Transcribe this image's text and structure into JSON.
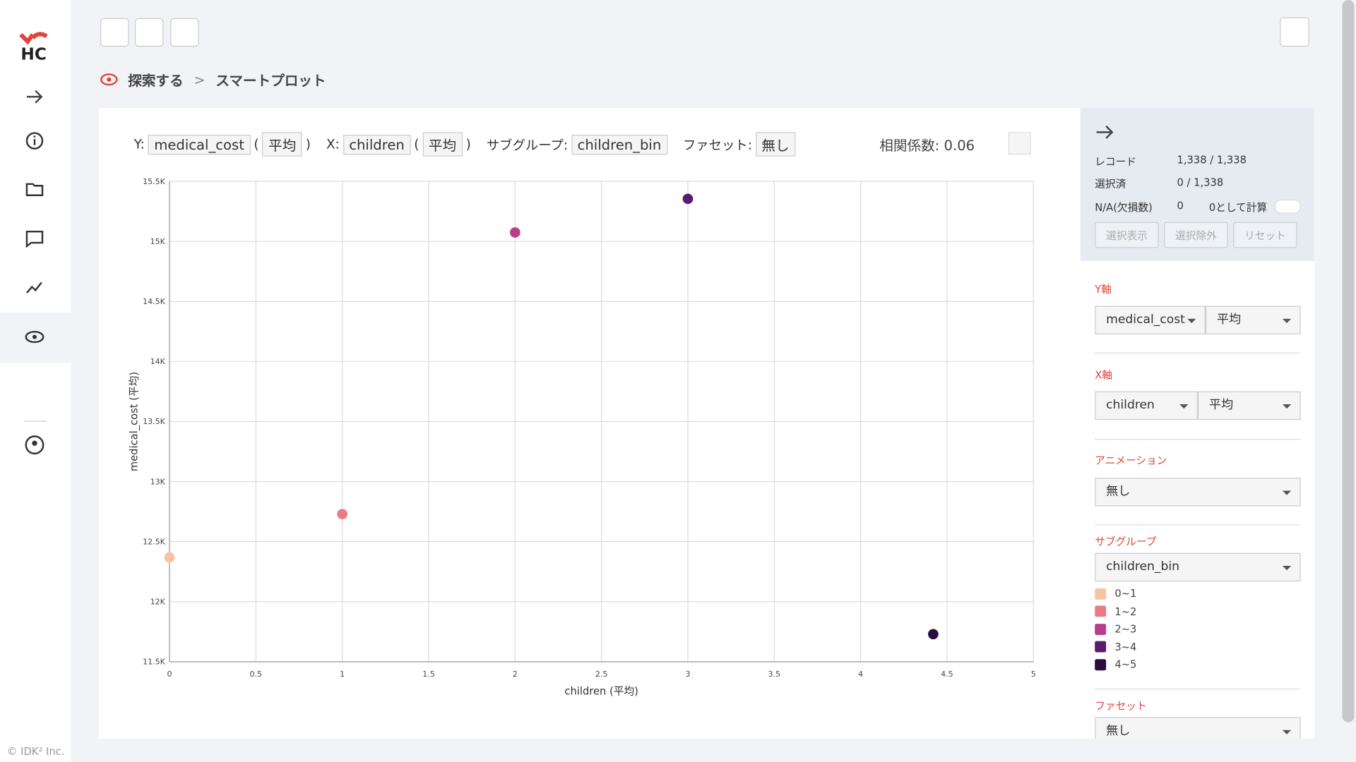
{
  "logo": "HC",
  "footer": "© IDK² Inc.",
  "breadcrumb": {
    "root": "探索する",
    "separator": ">",
    "current": "スマートプロット"
  },
  "toolbar": {
    "y_label": "Y:",
    "y_field": "medical_cost",
    "open": "(",
    "y_agg": "平均",
    "close": ")",
    "x_label": "X:",
    "x_field": "children",
    "x_agg": "平均",
    "subgroup_label": "サブグループ:",
    "subgroup": "children_bin",
    "facet_label": "ファセット:",
    "facet": "無し",
    "correlation": "相関係数: 0.06"
  },
  "panel": {
    "records_label": "レコード",
    "records": "1,338 / 1,338",
    "selected_label": "選択済",
    "selected": "0 / 1,338",
    "na_label": "N/A(欠損数)",
    "na": "0",
    "na_toggle": "0として計算",
    "buttons": [
      "選択表示",
      "選択除外",
      "リセット"
    ],
    "y_axis": {
      "title": "Y軸",
      "field": "medical_cost",
      "agg": "平均"
    },
    "x_axis": {
      "title": "X軸",
      "field": "children",
      "agg": "平均"
    },
    "animation": {
      "title": "アニメーション",
      "value": "無し"
    },
    "subgroup": {
      "title": "サブグループ",
      "value": "children_bin"
    },
    "facet": {
      "title": "ファセット",
      "value": "無し"
    }
  },
  "chart_data": {
    "type": "scatter",
    "x_label": "children (平均)",
    "y_label": "medical_cost (平均)",
    "xlim": [
      0,
      5
    ],
    "xticks": [
      0,
      0.5,
      1,
      1.5,
      2,
      2.5,
      3,
      3.5,
      4,
      4.5,
      5
    ],
    "ylim": [
      11500,
      15500
    ],
    "yticks": [
      {
        "value": 11500,
        "label": "11.5K"
      },
      {
        "value": 12000,
        "label": "12K"
      },
      {
        "value": 12500,
        "label": "12.5K"
      },
      {
        "value": 13000,
        "label": "13K"
      },
      {
        "value": 13500,
        "label": "13.5K"
      },
      {
        "value": 14000,
        "label": "14K"
      },
      {
        "value": 14500,
        "label": "14.5K"
      },
      {
        "value": 15000,
        "label": "15K"
      },
      {
        "value": 15500,
        "label": "15.5K"
      }
    ],
    "grid": true,
    "series": [
      {
        "name": "0~1",
        "color": "#f9c2a2",
        "x": [
          0
        ],
        "values": [
          12370
        ]
      },
      {
        "name": "1~2",
        "color": "#ec7b88",
        "x": [
          1
        ],
        "values": [
          12730
        ]
      },
      {
        "name": "2~3",
        "color": "#b6408b",
        "x": [
          2
        ],
        "values": [
          15075
        ]
      },
      {
        "name": "3~4",
        "color": "#5a1a6e",
        "x": [
          3
        ],
        "values": [
          15355
        ]
      },
      {
        "name": "4~5",
        "color": "#2a0e3e",
        "x": [
          4.42
        ],
        "values": [
          11730
        ]
      }
    ]
  }
}
